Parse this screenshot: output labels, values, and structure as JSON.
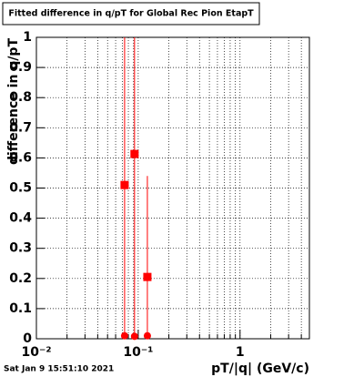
{
  "chart_data": {
    "type": "scatter",
    "title": "Fitted difference in q/pT for Global Rec Pion EtapT",
    "x_label": "pT/|q| (GeV/c)",
    "y_label": "difference in q/pT",
    "footer": "Sat Jan  9 15:51:10 2021",
    "xscale": "log",
    "xlim": [
      0.01,
      4.8
    ],
    "ylim": [
      0,
      1
    ],
    "xticks": [
      {
        "value": 0.01,
        "label": "10⁻²"
      },
      {
        "value": 0.1,
        "label": "10⁻¹"
      },
      1
    ],
    "xminorticks": [
      0.02,
      0.03,
      0.04,
      0.05,
      0.06,
      0.07,
      0.08,
      0.09,
      0.2,
      0.3,
      0.4,
      0.5,
      0.6,
      0.7,
      0.8,
      0.9,
      2,
      3,
      4
    ],
    "yticks": [
      0,
      0.1,
      0.2,
      0.3,
      0.4,
      0.5,
      0.6,
      0.7,
      0.8,
      0.9,
      1
    ],
    "grid": true,
    "series": [
      {
        "color": "#ff0000",
        "marker": "square",
        "x": [
          0.0735,
          0.092,
          0.123
        ],
        "values": [
          0.51,
          0.613,
          0.205
        ],
        "errors": [
          0.6,
          0.6,
          0.335
        ]
      },
      {
        "color": "#ff0000",
        "marker": "circle",
        "x": [
          0.0735,
          0.092,
          0.123
        ],
        "values": [
          0.01,
          0.008,
          0.01
        ]
      }
    ]
  }
}
